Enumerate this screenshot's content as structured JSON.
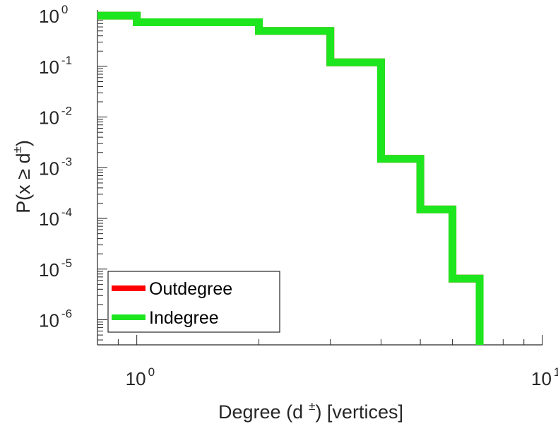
{
  "chart_data": {
    "type": "line",
    "xscale": "log",
    "yscale": "log",
    "xlim": [
      0.8,
      10
    ],
    "ylim": [
      3.2e-07,
      1.3
    ],
    "xticks": [
      {
        "value": 1,
        "base": "10",
        "exp": "0"
      },
      {
        "value": 10,
        "base": "10",
        "exp": "1"
      }
    ],
    "yticks": [
      {
        "value": 1,
        "base": "10",
        "exp": "0"
      },
      {
        "value": 0.1,
        "base": "10",
        "exp": "-1"
      },
      {
        "value": 0.01,
        "base": "10",
        "exp": "-2"
      },
      {
        "value": 0.001,
        "base": "10",
        "exp": "-3"
      },
      {
        "value": 0.0001,
        "base": "10",
        "exp": "-4"
      },
      {
        "value": 1e-05,
        "base": "10",
        "exp": "-5"
      },
      {
        "value": 1e-06,
        "base": "10",
        "exp": "-6"
      }
    ],
    "xlabel": {
      "pre": "Degree (d",
      "sup": "±",
      "post": ") [vertices]"
    },
    "ylabel": {
      "pre": "P(x ≥ d",
      "sup": "±",
      "post": ")"
    },
    "legend": {
      "placement": "bottom-left"
    },
    "grid": false,
    "series": [
      {
        "name": "Outdegree",
        "color": "#ff0000",
        "style": "stairs",
        "x": [
          0.8,
          1,
          2,
          3,
          4,
          5,
          6,
          7
        ],
        "y": [
          1,
          0.74,
          0.5,
          0.12,
          0.0015,
          0.00015,
          6.5e-06,
          3.2e-07
        ]
      },
      {
        "name": "Indegree",
        "color": "#1ee61e",
        "style": "stairs",
        "x": [
          0.8,
          1,
          2,
          3,
          4,
          5,
          6,
          7
        ],
        "y": [
          1,
          0.74,
          0.5,
          0.12,
          0.0015,
          0.00015,
          6.5e-06,
          3.2e-07
        ]
      }
    ]
  }
}
